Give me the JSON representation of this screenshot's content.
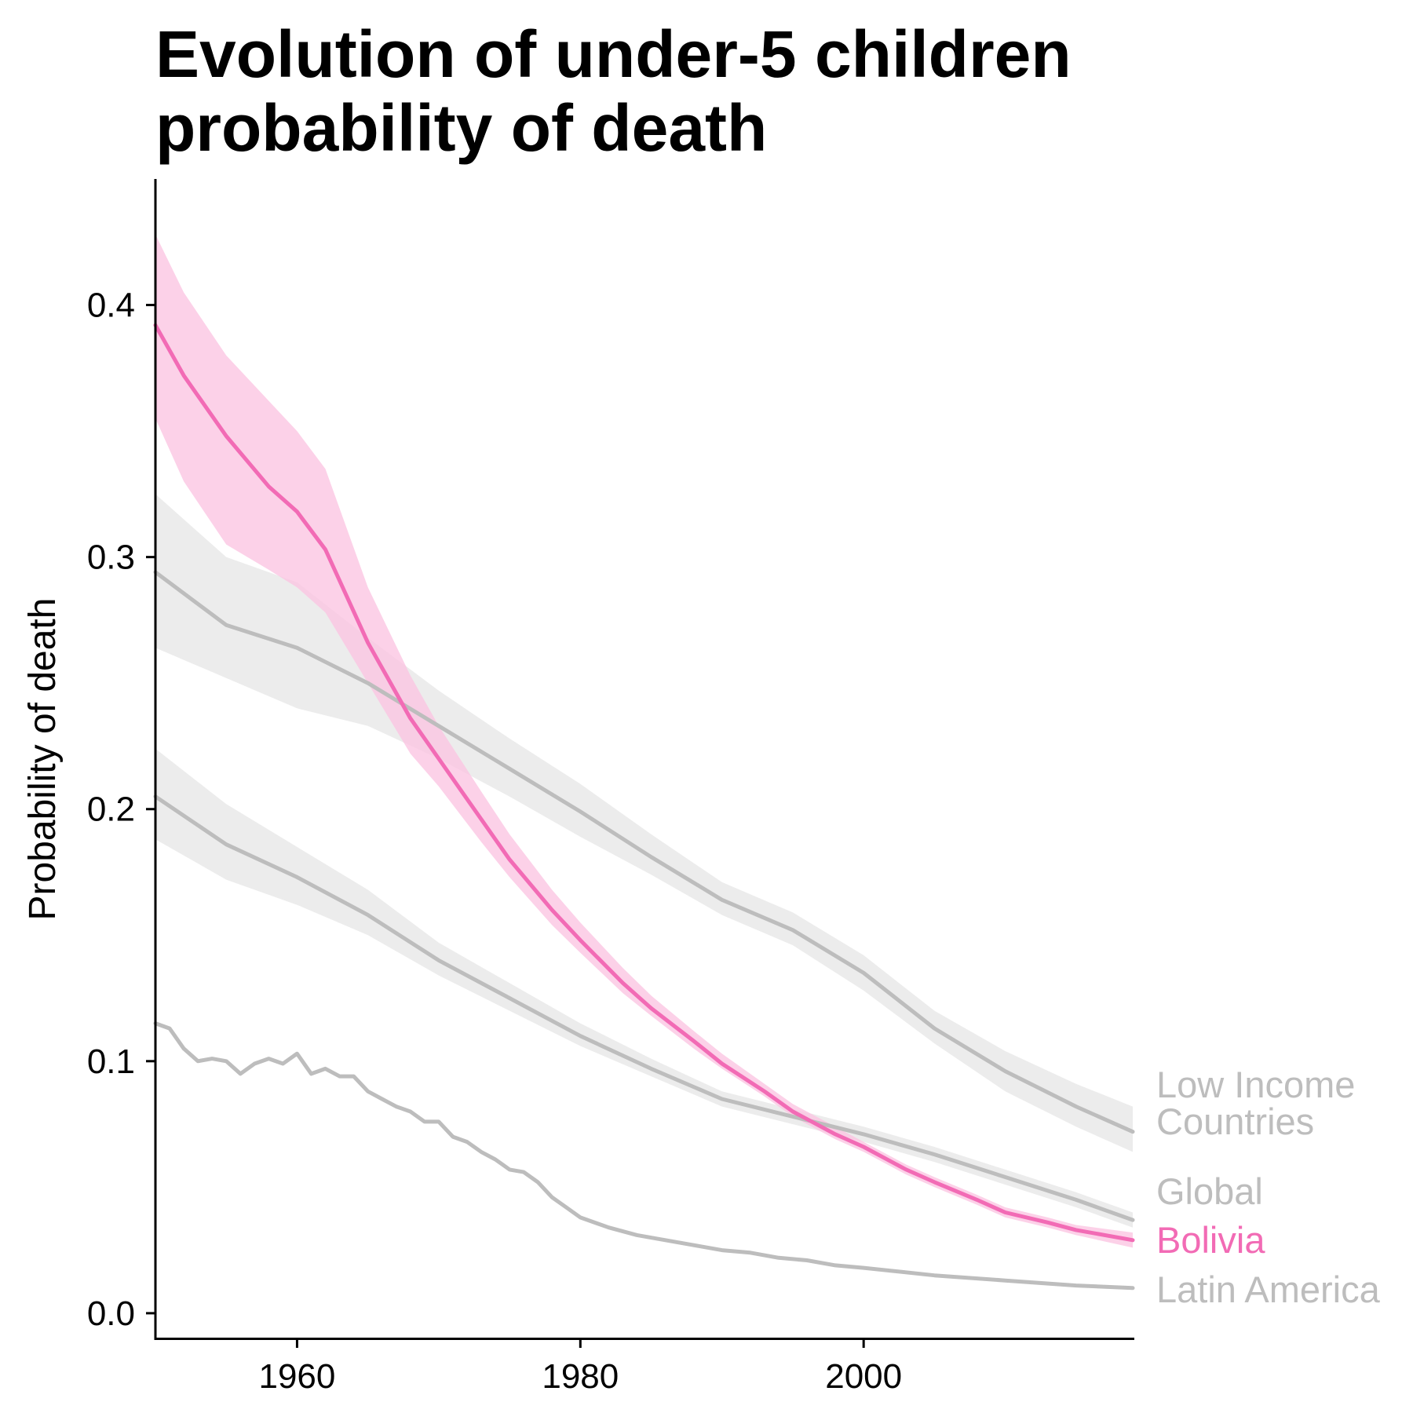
{
  "chart_data": {
    "type": "line",
    "title_lines": [
      "Evolution of under-5 children",
      "probability of death"
    ],
    "xlabel": "",
    "ylabel": "Probability of death",
    "xlim": [
      1950,
      2019
    ],
    "ylim": [
      -0.01,
      0.45
    ],
    "x_ticks": [
      1960,
      1980,
      2000
    ],
    "x_tick_labels": [
      "1960",
      "1980",
      "2000"
    ],
    "y_ticks": [
      0.0,
      0.1,
      0.2,
      0.3,
      0.4
    ],
    "y_tick_labels": [
      "0.0",
      "0.1",
      "0.2",
      "0.3",
      "0.4"
    ],
    "grid": false,
    "legend": "direct labels at right end of lines",
    "colors": {
      "highlight": "#f26bb5",
      "highlight_band": "#fbc6e2",
      "muted": "#bdbdbd",
      "muted_band": "#e6e6e6"
    },
    "series": [
      {
        "name": "Low Income Countries",
        "label_lines": [
          "Low Income",
          "Countries"
        ],
        "highlight": false,
        "x": [
          1950,
          1955,
          1960,
          1965,
          1970,
          1975,
          1980,
          1985,
          1990,
          1995,
          2000,
          2005,
          2010,
          2015,
          2019
        ],
        "y": [
          0.294,
          0.273,
          0.264,
          0.25,
          0.233,
          0.216,
          0.199,
          0.181,
          0.164,
          0.152,
          0.135,
          0.113,
          0.096,
          0.082,
          0.072
        ],
        "lower": [
          0.264,
          0.252,
          0.24,
          0.233,
          0.22,
          0.205,
          0.189,
          0.174,
          0.158,
          0.146,
          0.128,
          0.107,
          0.088,
          0.074,
          0.064
        ],
        "upper": [
          0.325,
          0.3,
          0.29,
          0.268,
          0.247,
          0.228,
          0.21,
          0.19,
          0.171,
          0.159,
          0.142,
          0.12,
          0.104,
          0.091,
          0.082
        ]
      },
      {
        "name": "Global",
        "label_lines": [
          "Global"
        ],
        "highlight": false,
        "x": [
          1950,
          1955,
          1960,
          1965,
          1970,
          1975,
          1980,
          1985,
          1990,
          1995,
          2000,
          2005,
          2010,
          2015,
          2019
        ],
        "y": [
          0.205,
          0.186,
          0.173,
          0.158,
          0.14,
          0.125,
          0.11,
          0.097,
          0.085,
          0.078,
          0.071,
          0.063,
          0.054,
          0.045,
          0.037
        ],
        "lower": [
          0.188,
          0.172,
          0.162,
          0.15,
          0.134,
          0.12,
          0.106,
          0.094,
          0.082,
          0.075,
          0.068,
          0.06,
          0.051,
          0.042,
          0.034
        ],
        "upper": [
          0.224,
          0.202,
          0.185,
          0.168,
          0.147,
          0.131,
          0.115,
          0.101,
          0.088,
          0.081,
          0.074,
          0.066,
          0.057,
          0.048,
          0.04
        ]
      },
      {
        "name": "Bolivia",
        "label_lines": [
          "Bolivia"
        ],
        "highlight": true,
        "x": [
          1950,
          1952,
          1955,
          1958,
          1960,
          1962,
          1965,
          1968,
          1970,
          1973,
          1975,
          1978,
          1980,
          1983,
          1985,
          1988,
          1990,
          1993,
          1995,
          1998,
          2000,
          2003,
          2005,
          2008,
          2010,
          2013,
          2015,
          2019
        ],
        "y": [
          0.392,
          0.372,
          0.348,
          0.328,
          0.318,
          0.303,
          0.266,
          0.236,
          0.22,
          0.196,
          0.18,
          0.16,
          0.148,
          0.131,
          0.121,
          0.108,
          0.099,
          0.088,
          0.08,
          0.071,
          0.066,
          0.057,
          0.052,
          0.045,
          0.04,
          0.036,
          0.033,
          0.029
        ],
        "lower": [
          0.355,
          0.33,
          0.305,
          0.295,
          0.288,
          0.278,
          0.25,
          0.222,
          0.209,
          0.187,
          0.173,
          0.154,
          0.143,
          0.127,
          0.118,
          0.105,
          0.097,
          0.086,
          0.078,
          0.069,
          0.064,
          0.055,
          0.05,
          0.043,
          0.038,
          0.034,
          0.031,
          0.026
        ],
        "upper": [
          0.428,
          0.405,
          0.38,
          0.362,
          0.35,
          0.335,
          0.288,
          0.253,
          0.233,
          0.207,
          0.19,
          0.168,
          0.155,
          0.137,
          0.126,
          0.112,
          0.103,
          0.091,
          0.083,
          0.074,
          0.068,
          0.059,
          0.054,
          0.047,
          0.042,
          0.038,
          0.035,
          0.032
        ]
      },
      {
        "name": "Latin America",
        "label_lines": [
          "Latin America"
        ],
        "highlight": false,
        "x": [
          1950,
          1951,
          1952,
          1953,
          1954,
          1955,
          1956,
          1957,
          1958,
          1959,
          1960,
          1961,
          1962,
          1963,
          1964,
          1965,
          1966,
          1967,
          1968,
          1969,
          1970,
          1971,
          1972,
          1973,
          1974,
          1975,
          1976,
          1977,
          1978,
          1979,
          1980,
          1982,
          1984,
          1986,
          1988,
          1990,
          1992,
          1994,
          1996,
          1998,
          2000,
          2005,
          2010,
          2015,
          2019
        ],
        "y": [
          0.115,
          0.113,
          0.105,
          0.1,
          0.101,
          0.1,
          0.095,
          0.099,
          0.101,
          0.099,
          0.103,
          0.095,
          0.097,
          0.094,
          0.094,
          0.088,
          0.085,
          0.082,
          0.08,
          0.076,
          0.076,
          0.07,
          0.068,
          0.064,
          0.061,
          0.057,
          0.056,
          0.052,
          0.046,
          0.042,
          0.038,
          0.034,
          0.031,
          0.029,
          0.027,
          0.025,
          0.024,
          0.022,
          0.021,
          0.019,
          0.018,
          0.015,
          0.013,
          0.011,
          0.01
        ]
      }
    ]
  }
}
